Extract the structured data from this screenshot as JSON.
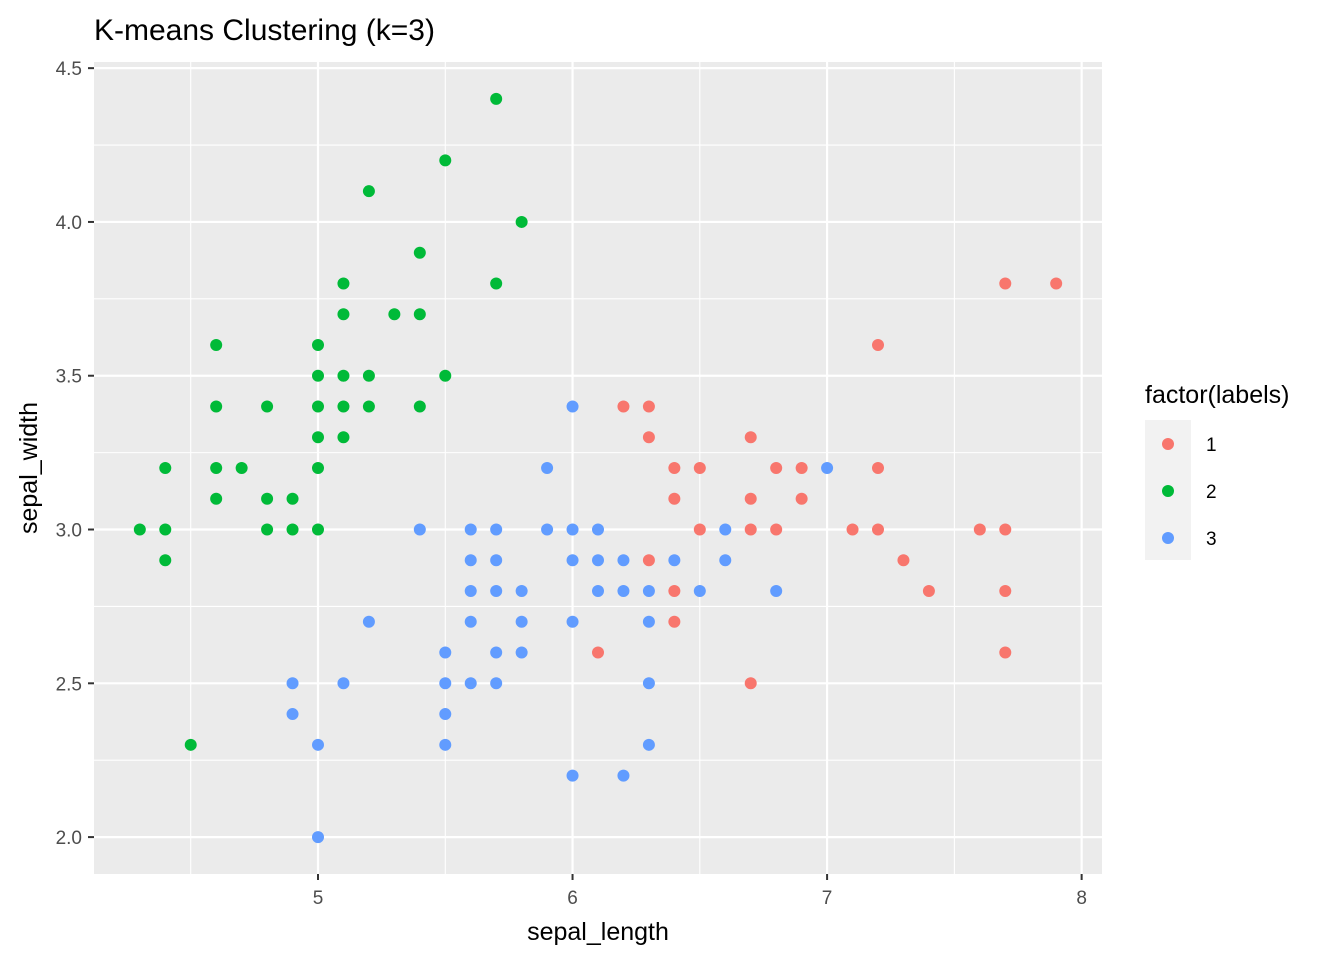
{
  "chart_data": {
    "type": "scatter",
    "title": "K-means Clustering (k=3)",
    "xlabel": "sepal_length",
    "ylabel": "sepal_width",
    "xlim": [
      4.12,
      8.08
    ],
    "ylim": [
      1.88,
      4.52
    ],
    "x_ticks": [
      "5",
      "6",
      "7",
      "8"
    ],
    "y_ticks": [
      "2.0",
      "2.5",
      "3.0",
      "3.5",
      "4.0",
      "4.5"
    ],
    "grid": true,
    "legend": {
      "title": "factor(labels)",
      "position": "right"
    },
    "series": [
      {
        "name": "1",
        "color": "#F8766D",
        "points": [
          [
            7.7,
            3.8
          ],
          [
            7.9,
            3.8
          ],
          [
            7.2,
            3.6
          ],
          [
            6.2,
            3.4
          ],
          [
            6.3,
            3.4
          ],
          [
            6.3,
            3.3
          ],
          [
            6.7,
            3.3
          ],
          [
            6.4,
            3.2
          ],
          [
            6.5,
            3.2
          ],
          [
            6.8,
            3.2
          ],
          [
            6.9,
            3.2
          ],
          [
            7.2,
            3.2
          ],
          [
            6.4,
            3.1
          ],
          [
            6.7,
            3.1
          ],
          [
            6.9,
            3.1
          ],
          [
            6.5,
            3.0
          ],
          [
            6.7,
            3.0
          ],
          [
            6.8,
            3.0
          ],
          [
            7.1,
            3.0
          ],
          [
            7.2,
            3.0
          ],
          [
            7.6,
            3.0
          ],
          [
            7.7,
            3.0
          ],
          [
            6.3,
            2.9
          ],
          [
            7.3,
            2.9
          ],
          [
            6.4,
            2.8
          ],
          [
            7.4,
            2.8
          ],
          [
            7.7,
            2.8
          ],
          [
            6.4,
            2.7
          ],
          [
            6.1,
            2.6
          ],
          [
            7.7,
            2.6
          ],
          [
            6.7,
            2.5
          ]
        ]
      },
      {
        "name": "2",
        "color": "#00BA38",
        "points": [
          [
            5.7,
            4.4
          ],
          [
            5.5,
            4.2
          ],
          [
            5.2,
            4.1
          ],
          [
            5.8,
            4.0
          ],
          [
            5.4,
            3.9
          ],
          [
            5.1,
            3.8
          ],
          [
            5.7,
            3.8
          ],
          [
            5.1,
            3.7
          ],
          [
            5.3,
            3.7
          ],
          [
            5.4,
            3.7
          ],
          [
            4.6,
            3.6
          ],
          [
            5.0,
            3.6
          ],
          [
            5.0,
            3.5
          ],
          [
            5.1,
            3.5
          ],
          [
            5.2,
            3.5
          ],
          [
            5.5,
            3.5
          ],
          [
            4.6,
            3.4
          ],
          [
            4.8,
            3.4
          ],
          [
            5.0,
            3.4
          ],
          [
            5.1,
            3.4
          ],
          [
            5.2,
            3.4
          ],
          [
            5.4,
            3.4
          ],
          [
            5.0,
            3.3
          ],
          [
            5.1,
            3.3
          ],
          [
            4.4,
            3.2
          ],
          [
            4.6,
            3.2
          ],
          [
            4.7,
            3.2
          ],
          [
            5.0,
            3.2
          ],
          [
            4.6,
            3.1
          ],
          [
            4.8,
            3.1
          ],
          [
            4.9,
            3.1
          ],
          [
            4.3,
            3.0
          ],
          [
            4.4,
            3.0
          ],
          [
            4.8,
            3.0
          ],
          [
            4.9,
            3.0
          ],
          [
            5.0,
            3.0
          ],
          [
            4.4,
            2.9
          ],
          [
            4.5,
            2.3
          ]
        ]
      },
      {
        "name": "3",
        "color": "#619CFF",
        "points": [
          [
            6.0,
            3.4
          ],
          [
            5.9,
            3.2
          ],
          [
            7.0,
            3.2
          ],
          [
            5.4,
            3.0
          ],
          [
            5.6,
            3.0
          ],
          [
            5.7,
            3.0
          ],
          [
            5.9,
            3.0
          ],
          [
            6.0,
            3.0
          ],
          [
            6.1,
            3.0
          ],
          [
            6.6,
            3.0
          ],
          [
            5.6,
            2.9
          ],
          [
            5.7,
            2.9
          ],
          [
            6.0,
            2.9
          ],
          [
            6.1,
            2.9
          ],
          [
            6.2,
            2.9
          ],
          [
            6.4,
            2.9
          ],
          [
            6.6,
            2.9
          ],
          [
            5.6,
            2.8
          ],
          [
            5.7,
            2.8
          ],
          [
            5.8,
            2.8
          ],
          [
            6.1,
            2.8
          ],
          [
            6.2,
            2.8
          ],
          [
            6.3,
            2.8
          ],
          [
            6.5,
            2.8
          ],
          [
            6.8,
            2.8
          ],
          [
            5.2,
            2.7
          ],
          [
            5.6,
            2.7
          ],
          [
            5.8,
            2.7
          ],
          [
            6.0,
            2.7
          ],
          [
            6.3,
            2.7
          ],
          [
            5.5,
            2.6
          ],
          [
            5.7,
            2.6
          ],
          [
            5.8,
            2.6
          ],
          [
            4.9,
            2.5
          ],
          [
            5.1,
            2.5
          ],
          [
            5.5,
            2.5
          ],
          [
            5.6,
            2.5
          ],
          [
            5.7,
            2.5
          ],
          [
            6.3,
            2.5
          ],
          [
            4.9,
            2.4
          ],
          [
            5.5,
            2.4
          ],
          [
            5.0,
            2.3
          ],
          [
            5.5,
            2.3
          ],
          [
            6.3,
            2.3
          ],
          [
            6.0,
            2.2
          ],
          [
            6.2,
            2.2
          ],
          [
            5.0,
            2.0
          ]
        ]
      }
    ]
  }
}
